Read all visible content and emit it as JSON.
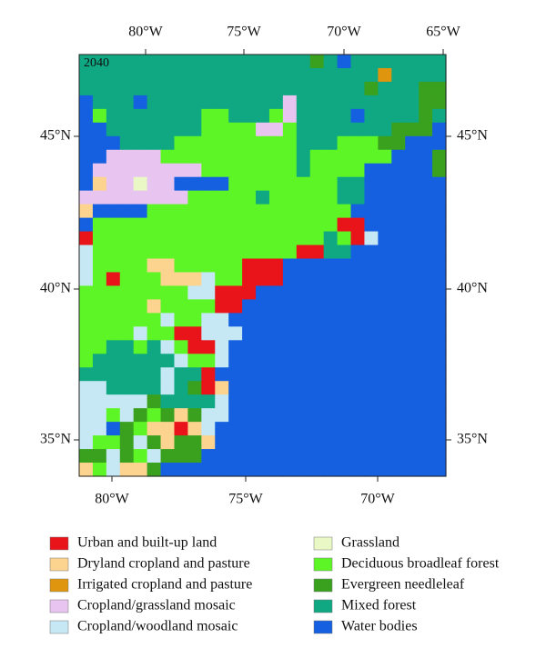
{
  "map": {
    "panel_label": "2040",
    "top_lon_labels": [
      "80°W",
      "75°W",
      "70°W",
      "65°W"
    ],
    "bottom_lon_labels": [
      "80°W",
      "75°W",
      "70°W"
    ],
    "left_lat_labels": [
      "45°N",
      "40°N",
      "35°N"
    ],
    "right_lat_labels": [
      "45°N",
      "40°N",
      "35°N"
    ],
    "legend": [
      {
        "label": "Urban and built-up land",
        "color": "#e8141a"
      },
      {
        "label": "Dryland cropland and pasture",
        "color": "#fcd38f"
      },
      {
        "label": "Irrigated cropland and pasture",
        "color": "#e0950f"
      },
      {
        "label": "Cropland/grassland mosaic",
        "color": "#e8c4f0"
      },
      {
        "label": "Cropland/woodland mosaic",
        "color": "#c6e8f5"
      },
      {
        "label": "Grassland",
        "color": "#e9f8c4"
      },
      {
        "label": "Deciduous broadleaf forest",
        "color": "#5ef526"
      },
      {
        "label": "Evergreen needleleaf",
        "color": "#3aa11f"
      },
      {
        "label": "Mixed forest",
        "color": "#0fa882"
      },
      {
        "label": "Water bodies",
        "color": "#1560e0"
      }
    ]
  }
}
